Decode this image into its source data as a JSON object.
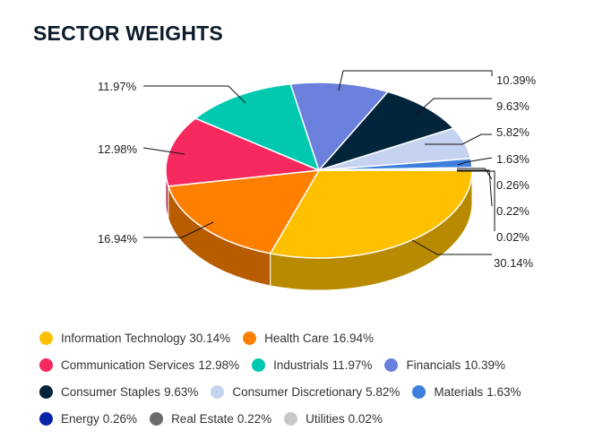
{
  "chart_data": {
    "type": "pie",
    "title": "SECTOR WEIGHTS",
    "slices": [
      {
        "label": "Information Technology",
        "value": 30.14,
        "display": "30.14%",
        "color": "#ffc000"
      },
      {
        "label": "Health Care",
        "value": 16.94,
        "display": "16.94%",
        "color": "#ff8000"
      },
      {
        "label": "Communication Services",
        "value": 12.98,
        "display": "12.98%",
        "color": "#f5295e"
      },
      {
        "label": "Industrials",
        "value": 11.97,
        "display": "11.97%",
        "color": "#00c9b0"
      },
      {
        "label": "Financials",
        "value": 10.39,
        "display": "10.39%",
        "color": "#6b7fdc"
      },
      {
        "label": "Consumer Staples",
        "value": 9.63,
        "display": "9.63%",
        "color": "#03253b"
      },
      {
        "label": "Consumer Discretionary",
        "value": 5.82,
        "display": "5.82%",
        "color": "#c6d3f0"
      },
      {
        "label": "Materials",
        "value": 1.63,
        "display": "1.63%",
        "color": "#3d7fdc"
      },
      {
        "label": "Energy",
        "value": 0.26,
        "display": "0.26%",
        "color": "#0a24a8"
      },
      {
        "label": "Real Estate",
        "value": 0.22,
        "display": "0.22%",
        "color": "#6b6b6b"
      },
      {
        "label": "Utilities",
        "value": 0.02,
        "display": "0.02%",
        "color": "#c8c8c8"
      }
    ],
    "legend_placement": "bottom"
  },
  "legend": {
    "rows": [
      [
        {
          "name": "Information Technology",
          "pct": "30.14%"
        },
        {
          "name": "Health Care",
          "pct": "16.94%"
        }
      ],
      [
        {
          "name": "Communication Services",
          "pct": "12.98%"
        },
        {
          "name": "Industrials",
          "pct": "11.97%"
        },
        {
          "name": "Financials",
          "pct": "10.39%"
        }
      ],
      [
        {
          "name": "Consumer Staples",
          "pct": "9.63%"
        },
        {
          "name": "Consumer Discretionary",
          "pct": "5.82%"
        },
        {
          "name": "Materials",
          "pct": "1.63%"
        }
      ],
      [
        {
          "name": "Energy",
          "pct": "0.26%"
        },
        {
          "name": "Real Estate",
          "pct": "0.22%"
        },
        {
          "name": "Utilities",
          "pct": "0.02%"
        }
      ]
    ]
  }
}
